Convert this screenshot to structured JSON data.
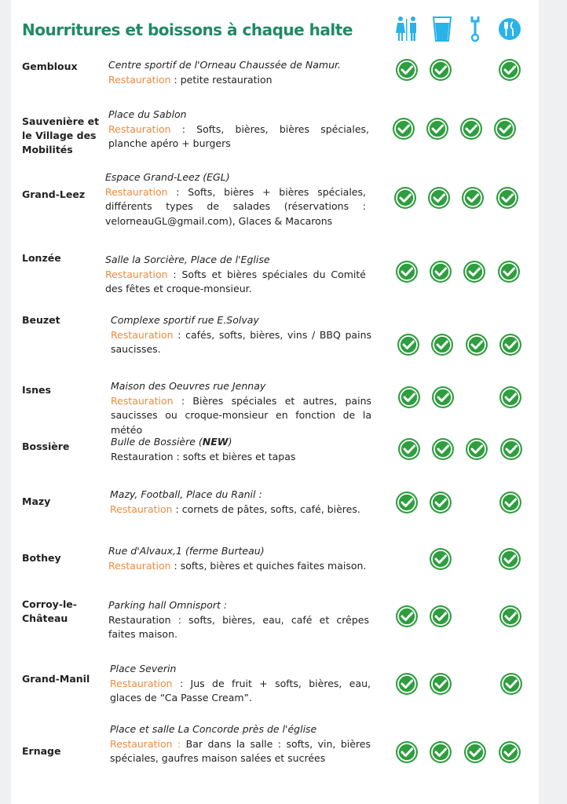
{
  "title": "Nourritures et boissons à chaque halte",
  "header_icons": [
    "toilets-icon",
    "water-glass-icon",
    "wrench-icon",
    "restaurant-icon"
  ],
  "colors": {
    "title": "#1f8a66",
    "accent": "#f08a3c",
    "check": "#2e9e3f",
    "icon": "#29b3e8"
  },
  "rows": [
    {
      "name": "Gembloux",
      "place": "Centre sportif de l'Orneau Chaussée de Namur.",
      "label": "Restauration",
      "label_orange": true,
      "text": " : petite restauration",
      "checks": [
        true,
        true,
        false,
        true
      ]
    },
    {
      "name": "Sauvenière et le Village des Mobilités",
      "place": "Place du Sablon",
      "label": "Restauration",
      "label_orange": true,
      "text": " : Softs, bières, bières spéciales, planche apéro + burgers",
      "checks": [
        true,
        true,
        true,
        true
      ]
    },
    {
      "name": "Grand-Leez",
      "place": "Espace Grand-Leez (EGL)",
      "label": "Restauration",
      "label_orange": true,
      "text": " : Softs, bières + bières spéciales, différents types de salades (réservations : velorneauGL@gmail.com), Glaces & Macarons",
      "checks": [
        true,
        true,
        true,
        true
      ]
    },
    {
      "name": "Lonzée",
      "place": "Salle la Sorcière, Place de l'Eglise",
      "label": "Restauration",
      "label_orange": true,
      "text": " : Softs et bières spéciales du Comité des fêtes  et croque-monsieur.",
      "checks": [
        true,
        true,
        true,
        true
      ]
    },
    {
      "name": "Beuzet",
      "place": "Complexe sportif rue E.Solvay",
      "label": "Restauration",
      "label_orange": true,
      "text": " : cafés, softs, bières, vins / BBQ pains saucisses.",
      "checks": [
        true,
        true,
        true,
        true
      ]
    },
    {
      "name": "Isnes",
      "place": "Maison des Oeuvres rue Jennay",
      "label": "Restauration",
      "label_orange": true,
      "text": " :  Bières spéciales et autres, pains saucisses ou croque-monsieur en fonction de la météo",
      "checks": [
        true,
        true,
        false,
        true
      ]
    },
    {
      "name": "Bossière",
      "place": "Bulle de Bossière (",
      "place_bold": "NEW",
      "place_end": ")",
      "label": "Restauration",
      "label_orange": false,
      "text": " : softs et bières et tapas",
      "checks": [
        true,
        true,
        true,
        true
      ]
    },
    {
      "name": "Mazy",
      "place": "Mazy, Football, Place du Ranil :",
      "label": "Restauration",
      "label_orange": true,
      "text": " : cornets de pâtes, softs, café, bières.",
      "checks": [
        true,
        true,
        false,
        true
      ]
    },
    {
      "name": "Bothey",
      "place": "Rue d'Alvaux,1 (ferme Burteau)",
      "label": "Restauration",
      "label_orange": true,
      "text": " : softs, bières et quiches faites maison.",
      "checks": [
        false,
        true,
        false,
        true
      ]
    },
    {
      "name": "Corroy-le-Château",
      "place": "Parking hall Omnisport :",
      "label": "Restauration",
      "label_orange": false,
      "text": " : softs, bières, eau, café et crêpes faites maison.",
      "checks": [
        true,
        true,
        false,
        true
      ]
    },
    {
      "name": "Grand-Manil",
      "place": "Place Severin",
      "label": "Restauration",
      "label_orange": true,
      "text": " :  Jus de fruit + softs, bières, eau, glaces de “Ca Passe Cream”.",
      "checks": [
        true,
        true,
        false,
        true
      ]
    },
    {
      "name": "Ernage",
      "place": "Place et salle La Concorde près de l'église",
      "label": "Restauration :",
      "label_orange": true,
      "text": " Bar dans la salle : softs, vin, bières spéciales, gaufres maison salées et sucrées",
      "checks": [
        true,
        true,
        true,
        true
      ]
    }
  ]
}
